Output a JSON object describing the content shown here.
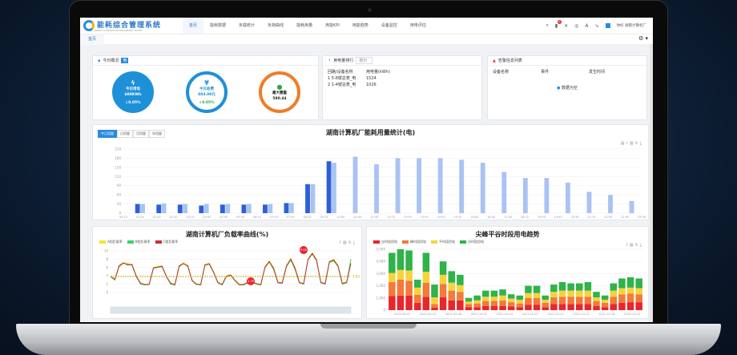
{
  "app": {
    "title": "能耗综合管理系统",
    "subtitle": "ENERGY CONSUMPTION MANAGEMENT SYSTEM"
  },
  "nav": {
    "items": [
      {
        "label": "首页",
        "icon": "home-icon"
      },
      {
        "label": "能耗数据",
        "icon": "bar-icon"
      },
      {
        "label": "负载统计",
        "icon": "pie-icon"
      },
      {
        "label": "负荷曲线",
        "icon": "line-icon"
      },
      {
        "label": "能耗用量",
        "icon": "bar-icon"
      },
      {
        "label": "用能KPI",
        "icon": "table-icon"
      },
      {
        "label": "用能趋势",
        "icon": "trend-icon"
      },
      {
        "label": "设备监控",
        "icon": "trend-icon"
      },
      {
        "label": "用电评估",
        "icon": "trend-icon"
      }
    ],
    "notification_count": "2",
    "user": "你好 湖南计算机厂"
  },
  "tabs": [
    {
      "label": "首页"
    }
  ],
  "overview": {
    "title": "今日概况",
    "tag": "电",
    "items": [
      {
        "label": "今日用电",
        "value": "688KWh",
        "pct": "0.05%",
        "icon": "bolt-icon"
      },
      {
        "label": "今日收费",
        "value": "884.98元",
        "pct": "0.05%",
        "icon": "yen-icon"
      },
      {
        "label": "最大需量",
        "value": "580.44",
        "icon": "drop-icon"
      }
    ]
  },
  "ranking": {
    "title": "用电量排行",
    "select": "按日",
    "headers": [
      "回路/设备名称",
      "用电量(kWh)"
    ],
    "rows": [
      [
        "1 5-8號总表_电",
        "1524"
      ],
      [
        "2 1-4號总表_电",
        "1026"
      ]
    ]
  },
  "alarms": {
    "title": "告警信息列表",
    "headers": [
      "设备名称",
      "事件",
      "发生时间"
    ],
    "empty": "数据为空"
  },
  "colors": {
    "primary": "#2a8be0",
    "dark_bar": "#2d5fd8",
    "light_bar": "#a9c3f2",
    "red": "#e8262b",
    "orange": "#f27a3a",
    "yellow": "#f5d33a",
    "green": "#2fb34a"
  },
  "chart_data": [
    {
      "type": "bar",
      "title": "湖南计算机厂能耗用量统计(电)",
      "buttons": [
        "今日用量",
        "日用量",
        "月用量",
        "年用量"
      ],
      "ylim": [
        0,
        210
      ],
      "yticks": [
        0,
        30,
        60,
        90,
        120,
        150,
        180,
        210
      ],
      "xtick_labels": [
        "00:15",
        "01:00",
        "01:45",
        "02:30",
        "03:15",
        "04:00",
        "04:45",
        "05:30",
        "06:15",
        "07:00",
        "07:45",
        "08:30",
        "09:15",
        "10:00",
        "10:45",
        "11:30",
        "12:15",
        "13:00",
        "13:45",
        "14:30",
        "15:15",
        "16:00",
        "16:45",
        "17:30",
        "18:15",
        "19:00",
        "19:45",
        "20:30",
        "21:15",
        "22:00",
        "22:45",
        "23:30"
      ],
      "series": [
        {
          "values": [
            30,
            28,
            28,
            25,
            28,
            28,
            28,
            33,
            95,
            170,
            null,
            null,
            null,
            null,
            null,
            null,
            null,
            null,
            null,
            null,
            null,
            null,
            null,
            null
          ]
        },
        {
          "values": [
            30,
            32,
            30,
            30,
            30,
            30,
            30,
            33,
            95,
            165,
            185,
            160,
            180,
            180,
            180,
            175,
            165,
            135,
            115,
            115,
            100,
            70,
            60,
            40
          ]
        }
      ],
      "grid": true
    },
    {
      "type": "line",
      "title": "湖南计算机厂负载率曲线(%)",
      "ylim": [
        0,
        10
      ],
      "yticks": [
        0,
        2,
        4,
        6,
        8,
        10
      ],
      "series": [
        {
          "name": "A相负载率",
          "values": [
            4,
            3.2,
            6.5,
            7.2,
            7,
            6.8,
            4,
            2.3,
            2,
            2,
            6,
            6.3,
            6.4,
            4,
            2.3,
            2,
            6.5,
            7.2,
            6.5,
            3,
            2.1,
            2,
            6.8,
            7,
            5,
            2.5,
            2,
            4,
            4.3,
            3,
            2,
            2,
            2.5,
            2.6,
            2.2,
            2,
            6.2,
            7.6,
            6,
            2.5,
            2.4,
            6.5,
            8.2,
            6,
            2.5,
            2.2,
            8,
            9.5,
            8,
            2.5,
            2.2,
            7.5,
            8,
            6.5,
            2.3,
            2.5,
            7
          ]
        },
        {
          "name": "B相负载率",
          "values": [
            3.8,
            3,
            6.2,
            7,
            6.8,
            6.5,
            3.8,
            2,
            1.8,
            1.9,
            5.8,
            6,
            6.2,
            3.8,
            2,
            1.8,
            6.2,
            7,
            6.2,
            2.8,
            1.9,
            1.8,
            6.5,
            6.8,
            4.8,
            2.3,
            1.8,
            3.8,
            4.1,
            2.8,
            1.8,
            1.8,
            2.3,
            2.4,
            2,
            1.8,
            6,
            7.3,
            5.5,
            2.3,
            2.2,
            6.2,
            7.8,
            5.5,
            2.3,
            2,
            7.8,
            9.2,
            7.6,
            2.3,
            2,
            7.2,
            7.6,
            6.2,
            2,
            2.3,
            8
          ]
        },
        {
          "name": "C相负载率",
          "values": [
            3.9,
            3.1,
            6.4,
            7.1,
            6.6,
            6.7,
            3.9,
            2.2,
            1.9,
            2,
            5.9,
            6.1,
            6.3,
            3.9,
            2.2,
            1.9,
            6.4,
            6.9,
            6.4,
            2.9,
            2,
            1.9,
            6.6,
            6.9,
            4.9,
            2.4,
            1.9,
            3.9,
            4.2,
            2.9,
            1.9,
            1.9,
            2.4,
            2.5,
            2.1,
            1.9,
            6.1,
            7.4,
            5.8,
            2.4,
            2.3,
            6.4,
            8,
            5.8,
            2.4,
            2.1,
            7.9,
            9.4,
            7.8,
            2.4,
            2.1,
            7.4,
            7.8,
            6.4,
            2.2,
            2.4,
            7
          ]
        }
      ],
      "markers": {
        "max": "9.58",
        "min": "1.79",
        "average": "3.83"
      },
      "grid": true,
      "legend": "top-left"
    },
    {
      "type": "bar",
      "stacked": true,
      "title": "尖峰平谷时段用电趋势",
      "ylim": [
        0,
        5000
      ],
      "yticks": [
        0,
        1000,
        2000,
        3000,
        4000,
        5000
      ],
      "xtick_labels": [
        "2021-09-22",
        "2021-09-25",
        "2021-09-28",
        "2021-10-01",
        "2021-10-04",
        "2021-10-07",
        "2021-10-10",
        "2021-10-13",
        "2021-10-16",
        "2021-10-19"
      ],
      "series": [
        {
          "name": "尖时段用电",
          "values": [
            1150,
            1200,
            1200,
            600,
            1100,
            200,
            1050,
            800,
            800,
            250,
            250,
            350,
            350,
            350,
            300,
            250,
            450,
            450,
            250,
            500,
            500,
            500,
            500,
            500,
            350,
            250,
            500,
            600,
            650,
            650
          ]
        },
        {
          "name": "峰时段用电",
          "values": [
            1150,
            1300,
            1200,
            650,
            1150,
            300,
            1100,
            800,
            700,
            250,
            300,
            400,
            400,
            450,
            350,
            300,
            550,
            550,
            350,
            550,
            600,
            600,
            600,
            600,
            400,
            350,
            600,
            700,
            700,
            650
          ]
        },
        {
          "name": "平时段用电",
          "values": [
            750,
            800,
            850,
            600,
            900,
            550,
            750,
            650,
            550,
            200,
            250,
            350,
            350,
            400,
            300,
            300,
            400,
            400,
            250,
            450,
            500,
            500,
            500,
            500,
            300,
            250,
            500,
            500,
            500,
            500
          ]
        },
        {
          "name": "谷时段用电",
          "values": [
            1650,
            1700,
            1650,
            650,
            1550,
            1050,
            1100,
            950,
            850,
            300,
            400,
            500,
            500,
            500,
            350,
            350,
            600,
            600,
            350,
            600,
            700,
            600,
            600,
            700,
            450,
            350,
            600,
            800,
            850,
            800
          ]
        }
      ],
      "legend": "top-left"
    }
  ]
}
